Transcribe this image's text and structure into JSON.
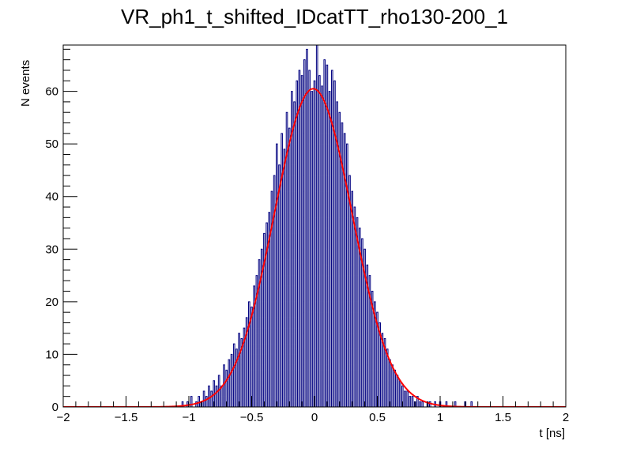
{
  "chart_data": {
    "type": "histogram",
    "title": "VR_ph1_t_shifted_IDcatTT_rho130-200_1",
    "xlabel": "t [ns]",
    "ylabel": "N events",
    "xlim": [
      -2,
      2
    ],
    "ylim": [
      0,
      68.8
    ],
    "x_ticks": [
      -2,
      -1.5,
      -1,
      -0.5,
      0,
      0.5,
      1,
      1.5,
      2
    ],
    "x_tick_labels": [
      "−2",
      "−1.5",
      "−1",
      "−0.5",
      "0",
      "0.5",
      "1",
      "1.5",
      "2"
    ],
    "y_ticks": [
      0,
      10,
      20,
      30,
      40,
      50,
      60
    ],
    "y_tick_labels": [
      "0",
      "10",
      "20",
      "30",
      "40",
      "50",
      "60"
    ],
    "bin_width": 0.01,
    "bin_centers": [
      -1.05,
      -1.01,
      -0.98,
      -0.96,
      -0.94,
      -0.92,
      -0.9,
      -0.88,
      -0.86,
      -0.84,
      -0.82,
      -0.8,
      -0.78,
      -0.76,
      -0.74,
      -0.72,
      -0.7,
      -0.68,
      -0.66,
      -0.64,
      -0.62,
      -0.6,
      -0.58,
      -0.56,
      -0.54,
      -0.52,
      -0.5,
      -0.48,
      -0.46,
      -0.44,
      -0.42,
      -0.4,
      -0.38,
      -0.36,
      -0.34,
      -0.32,
      -0.3,
      -0.28,
      -0.26,
      -0.24,
      -0.22,
      -0.2,
      -0.18,
      -0.16,
      -0.14,
      -0.12,
      -0.1,
      -0.08,
      -0.06,
      -0.04,
      -0.02,
      0,
      0.02,
      0.04,
      0.06,
      0.08,
      0.1,
      0.12,
      0.14,
      0.16,
      0.18,
      0.2,
      0.22,
      0.24,
      0.26,
      0.28,
      0.3,
      0.32,
      0.34,
      0.36,
      0.38,
      0.4,
      0.42,
      0.44,
      0.46,
      0.48,
      0.5,
      0.52,
      0.54,
      0.56,
      0.58,
      0.6,
      0.62,
      0.64,
      0.66,
      0.68,
      0.7,
      0.72,
      0.74,
      0.76,
      0.78,
      0.8,
      0.82,
      0.84,
      0.86,
      0.88,
      0.9,
      0.92,
      0.94,
      0.96,
      0.98,
      1.0,
      1.05,
      1.12,
      1.2,
      1.25
    ],
    "counts": [
      1,
      1,
      2,
      0,
      1,
      2,
      1,
      3,
      2,
      4,
      3,
      5,
      4,
      6,
      4,
      8,
      7,
      9,
      10,
      12,
      11,
      14,
      13,
      15,
      17,
      20,
      19,
      23,
      25,
      28,
      30,
      33,
      35,
      37,
      41,
      44,
      50,
      46,
      52,
      49,
      56,
      53,
      60,
      58,
      62,
      64,
      63,
      66,
      68,
      64,
      60,
      62,
      69,
      63,
      61,
      66,
      65,
      60,
      64,
      62,
      58,
      56,
      54,
      52,
      50,
      44,
      41,
      38,
      36,
      34,
      32,
      30,
      27,
      25,
      22,
      20,
      18,
      16,
      14,
      13,
      11,
      9,
      8,
      7,
      6,
      5,
      4,
      3,
      3,
      2,
      2,
      1,
      2,
      1,
      1,
      0,
      1,
      1,
      0,
      1,
      0,
      1,
      1,
      1,
      1,
      1
    ],
    "series": [
      {
        "name": "",
        "type": "step",
        "color": "#000080"
      },
      {
        "name": "",
        "type": "line",
        "color": "#ff0000",
        "model": "gaussian",
        "amplitude": 60.5,
        "mean": -0.01,
        "sigma": 0.31
      }
    ],
    "grid": false,
    "legend": "none"
  }
}
